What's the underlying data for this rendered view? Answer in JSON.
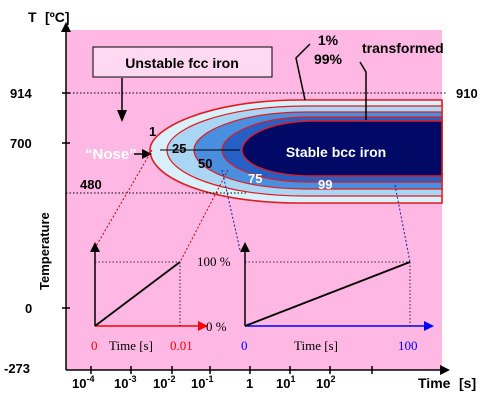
{
  "y_axis": {
    "title": "T",
    "unit": "[ºC]",
    "label": "Temperature",
    "ticks": [
      "914",
      "700",
      "0",
      "-273"
    ]
  },
  "x_axis": {
    "title": "Time",
    "unit": "[s]",
    "tick_bases": [
      "10",
      "10",
      "10",
      "10",
      "1",
      "10",
      "10"
    ],
    "tick_exponents": [
      "-4",
      "-3",
      "-2",
      "-1",
      "",
      "1",
      "2"
    ]
  },
  "annotations": {
    "unstable": "Unstable fcc iron",
    "nose": "“Nose”",
    "stable": "Stable bcc iron",
    "pct_1": "1%",
    "pct_99": "99%",
    "transformed": "transformed",
    "temp_910": "910",
    "temp_480": "480",
    "contour_1": "1",
    "contour_25": "25",
    "contour_50": "50",
    "contour_75": "75",
    "contour_99": "99"
  },
  "inset_left": {
    "x_start": "0",
    "x_label": "Time [s]",
    "x_end": "0.01"
  },
  "inset_right": {
    "y_top": "100 %",
    "y_bottom": "0 %",
    "x_start": "0",
    "x_label": "Time [s]",
    "x_end": "100"
  },
  "colors": {
    "background": "#ffb7e3",
    "contour_outer": "#d7f0fb",
    "contour_2": "#a8d6f4",
    "contour_3": "#4a8ee0",
    "contour_4": "#2660c6",
    "contour_core": "#000a66",
    "contour_line": "#e21b1b",
    "inset_left_axis": "#ff0000",
    "inset_right_axis": "#0000ff"
  }
}
